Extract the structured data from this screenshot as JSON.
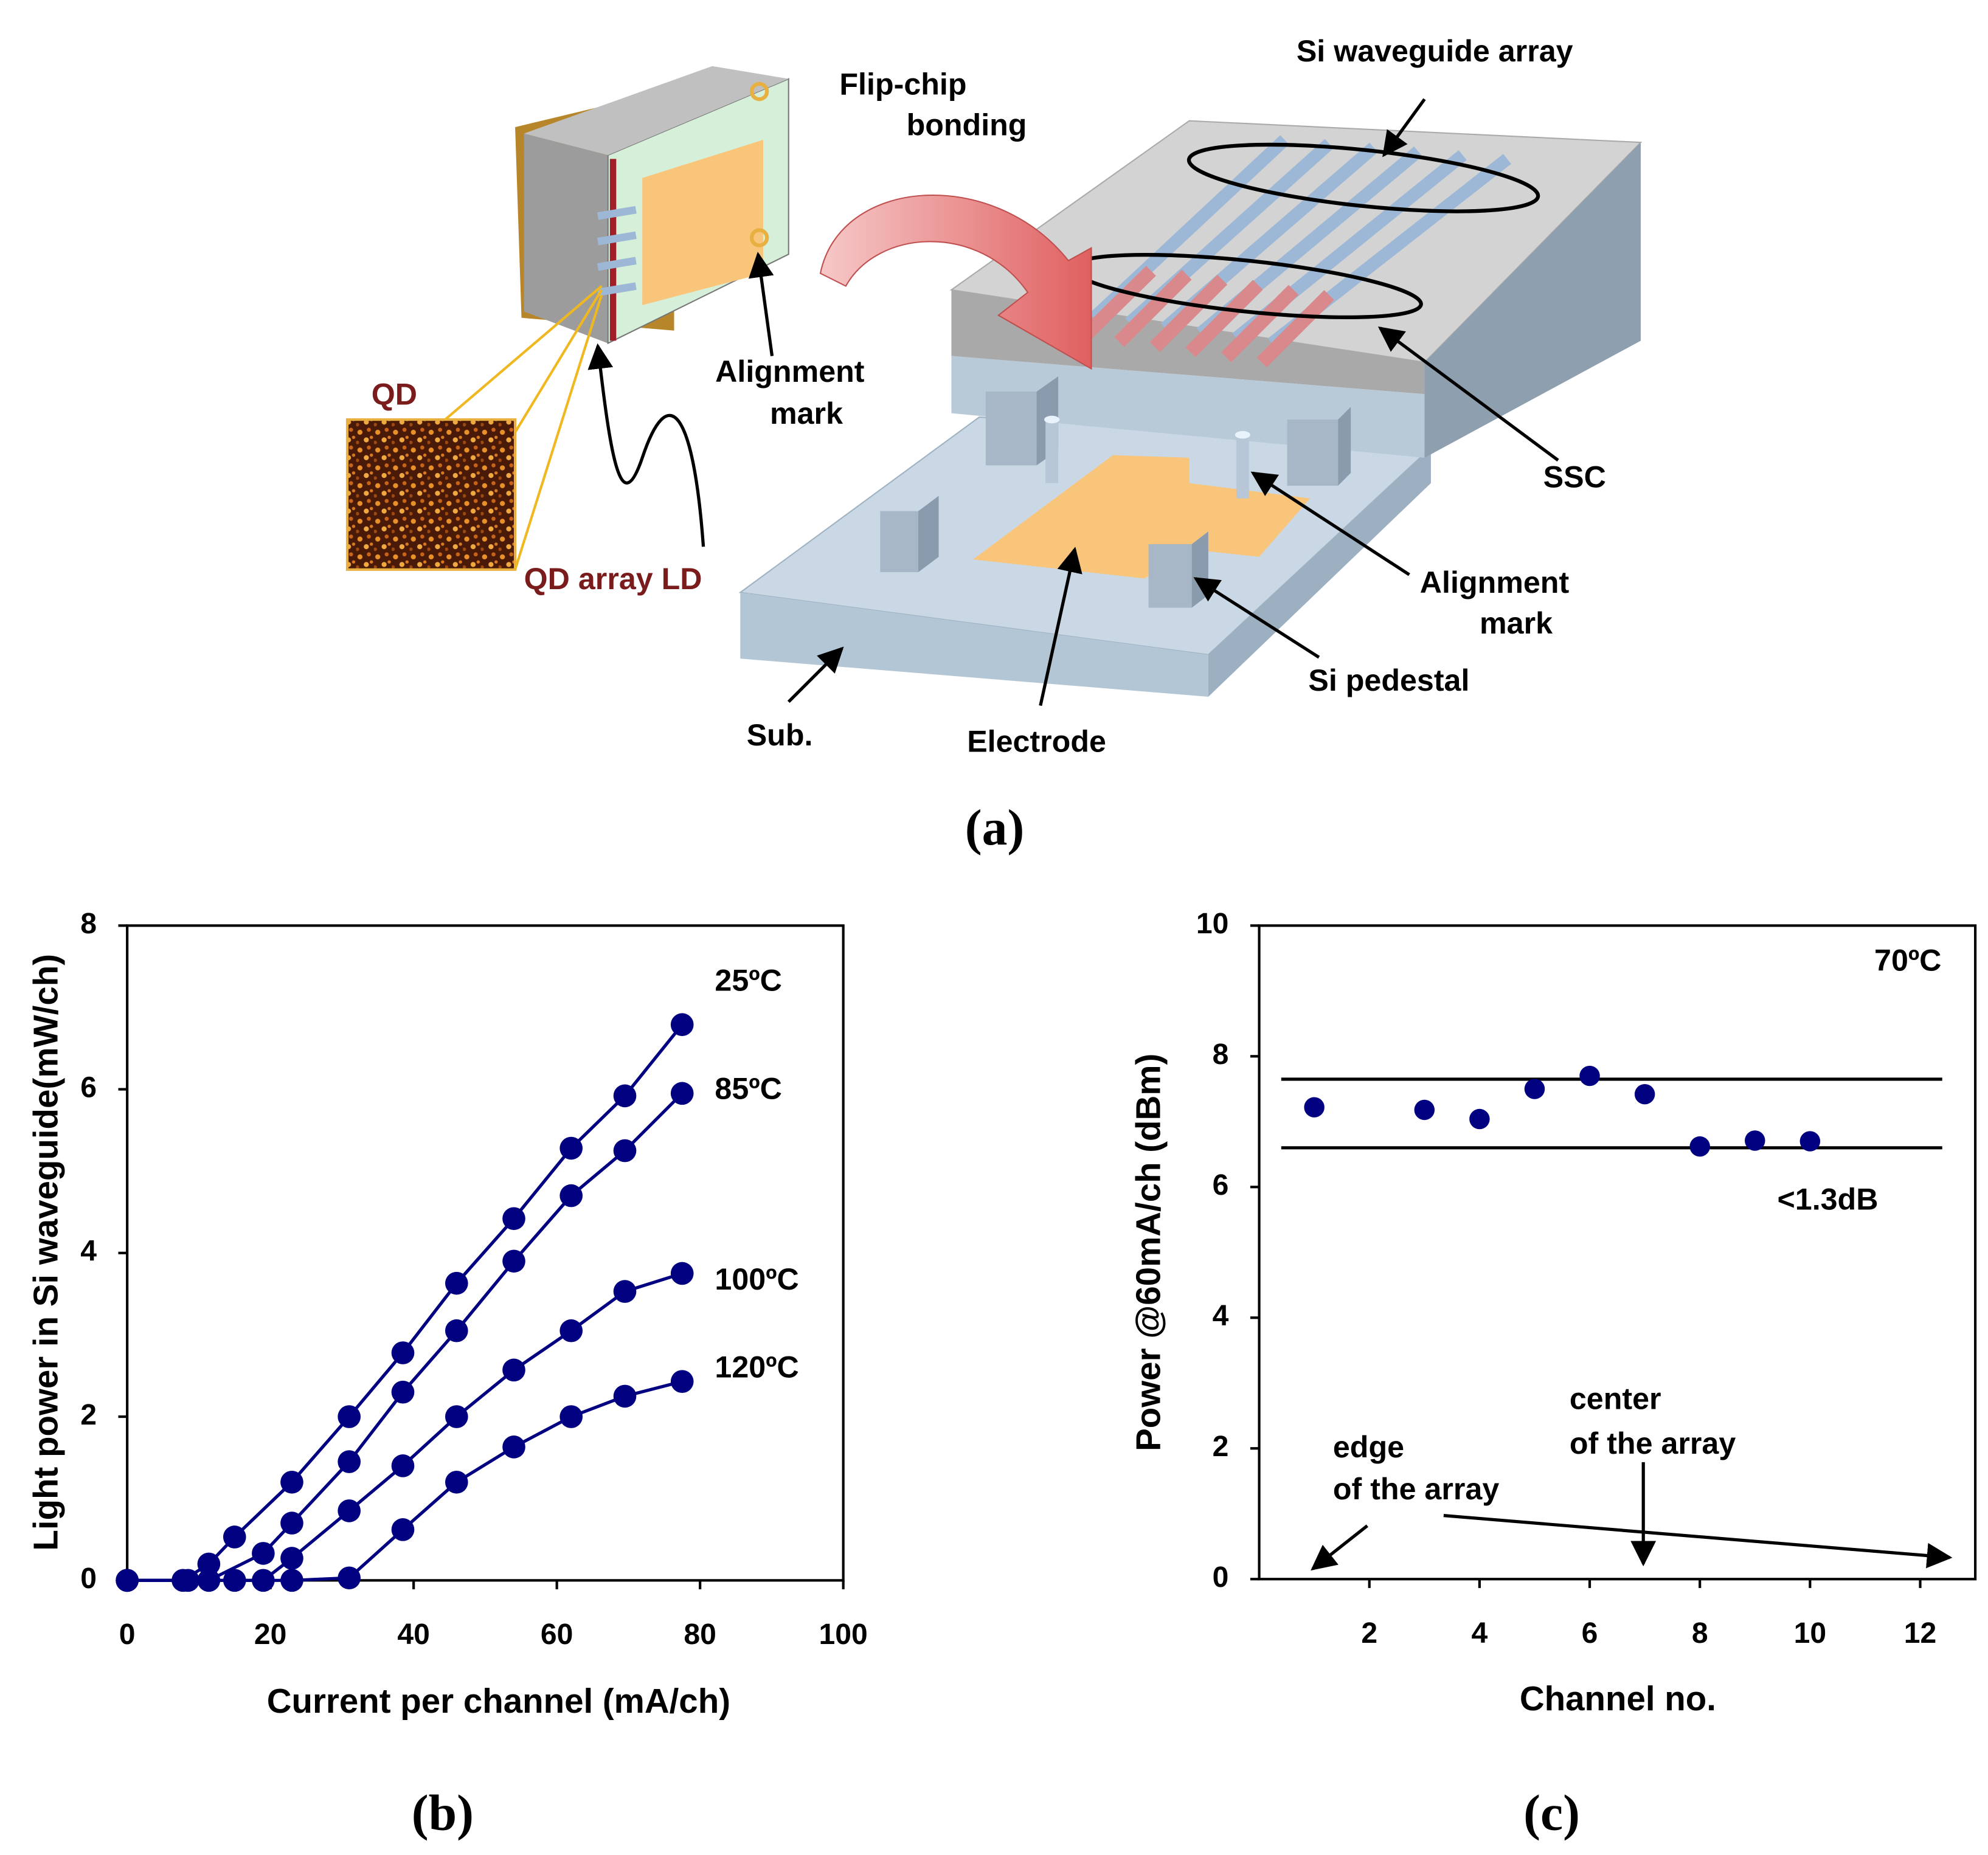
{
  "diagram": {
    "panel_label": "(a)",
    "labels": {
      "flip_chip": [
        "Flip-chip",
        "bonding"
      ],
      "si_waveguide_array": "Si waveguide array",
      "alignment_mark_ld": [
        "Alignment",
        "mark"
      ],
      "qd": "QD",
      "qd_array_ld": "QD array LD",
      "ssc": "SSC",
      "alignment_mark_sub": [
        "Alignment",
        "mark"
      ],
      "si_pedestal": "Si pedestal",
      "sub": "Sub.",
      "electrode": "Electrode"
    }
  },
  "chart_data": [
    {
      "type": "line",
      "panel_label": "(b)",
      "x_label": "Current per channel (mA/ch)",
      "y_label": "Light power in Si waveguide(mW/ch)",
      "xlim": [
        0,
        100
      ],
      "xticks": [
        0,
        20,
        40,
        60,
        80,
        100
      ],
      "ylim": [
        0,
        8
      ],
      "yticks": [
        0,
        2,
        4,
        6,
        8
      ],
      "series": [
        {
          "name": "25ºC",
          "color": "#000080",
          "x": [
            0,
            7.8,
            11.4,
            15,
            23,
            31,
            38.5,
            46,
            54,
            62,
            69.5,
            77.5
          ],
          "values": [
            0,
            0,
            0.2,
            0.53,
            1.2,
            2.0,
            2.78,
            3.63,
            4.42,
            5.28,
            5.92,
            6.79
          ]
        },
        {
          "name": "85ºC",
          "color": "#000080",
          "x": [
            0,
            8.5,
            11.4,
            19,
            23,
            31,
            38.5,
            46,
            54,
            62,
            69.5,
            77.5
          ],
          "values": [
            0,
            0,
            0,
            0.33,
            0.7,
            1.45,
            2.3,
            3.05,
            3.9,
            4.7,
            5.25,
            5.95
          ]
        },
        {
          "name": "100ºC",
          "color": "#000080",
          "x": [
            0,
            15,
            19,
            23,
            31,
            38.5,
            46,
            54,
            62,
            69.5,
            77.5
          ],
          "values": [
            0,
            0,
            0,
            0.27,
            0.85,
            1.4,
            2.0,
            2.57,
            3.05,
            3.53,
            3.75
          ]
        },
        {
          "name": "120ºC",
          "color": "#000080",
          "x": [
            0,
            23,
            31,
            38.5,
            46,
            54,
            62,
            69.5,
            77.5
          ],
          "values": [
            0,
            0,
            0.03,
            0.62,
            1.2,
            1.63,
            2.0,
            2.25,
            2.43
          ]
        }
      ]
    },
    {
      "type": "scatter",
      "panel_label": "(c)",
      "x_label": "Channel no.",
      "y_label": "Power @60mA/ch (dBm)",
      "xlim": [
        0,
        13
      ],
      "xticks": [
        2,
        4,
        6,
        8,
        10,
        12
      ],
      "ylim": [
        0,
        10
      ],
      "yticks": [
        0,
        2,
        4,
        6,
        8,
        10
      ],
      "color": "#000080",
      "x": [
        1,
        3,
        4,
        5,
        6,
        7,
        8,
        9,
        10
      ],
      "values": [
        7.22,
        7.18,
        7.04,
        7.5,
        7.7,
        7.42,
        6.62,
        6.71,
        6.7
      ],
      "reference_lines": [
        7.65,
        6.6
      ],
      "annotations": {
        "temperature": "70ºC",
        "spread": "<1.3dB",
        "edge": [
          "edge",
          "of the array"
        ],
        "center": [
          "center",
          "of the array"
        ]
      }
    }
  ]
}
